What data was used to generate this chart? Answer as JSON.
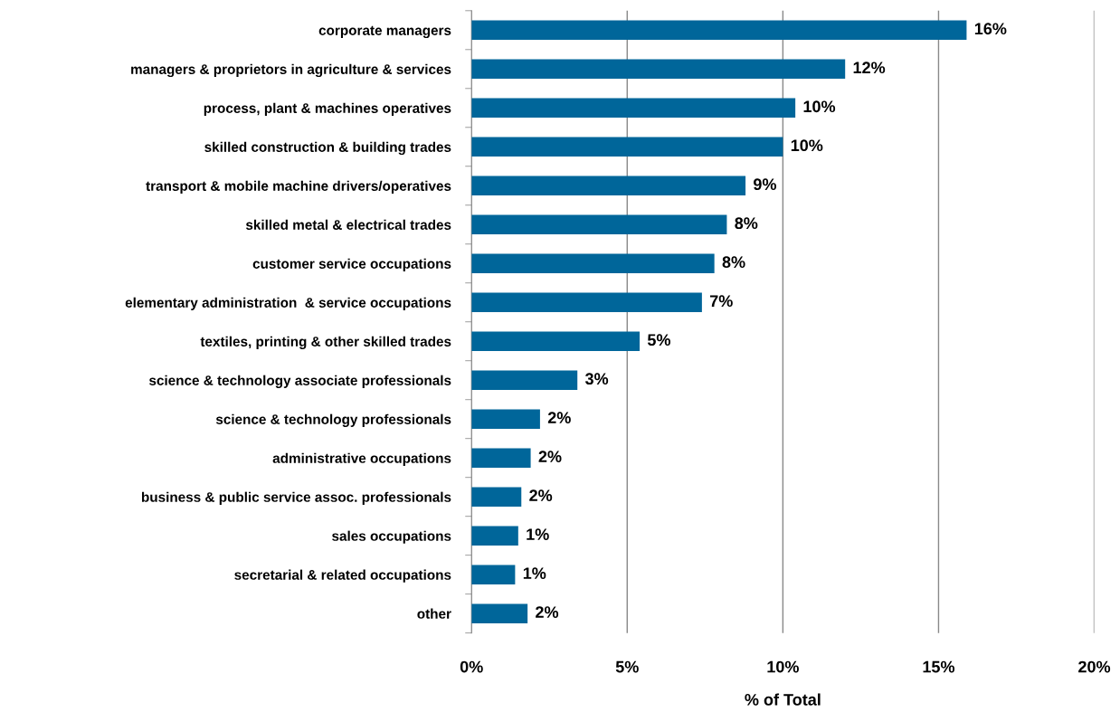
{
  "chart_data": {
    "type": "bar",
    "orientation": "horizontal",
    "xlabel": "% of Total",
    "categories": [
      "corporate managers",
      "managers & proprietors in agriculture & services",
      "process, plant & machines operatives",
      "skilled construction & building trades",
      "transport & mobile machine drivers/operatives",
      "skilled metal & electrical trades",
      "customer service occupations",
      "elementary administration  & service occupations",
      "textiles, printing & other skilled trades",
      "science & technology associate professionals",
      "science & technology professionals",
      "administrative occupations",
      "business & public service assoc. professionals",
      "sales occupations",
      "secretarial & related occupations",
      "other"
    ],
    "values": [
      15.9,
      12.0,
      10.4,
      10.0,
      8.8,
      8.2,
      7.8,
      7.4,
      5.4,
      3.4,
      2.2,
      1.9,
      1.6,
      1.5,
      1.4,
      1.8
    ],
    "value_labels": [
      "16%",
      "12%",
      "10%",
      "10%",
      "9%",
      "8%",
      "8%",
      "7%",
      "5%",
      "3%",
      "2%",
      "2%",
      "2%",
      "1%",
      "1%",
      "2%"
    ],
    "color": "#00669a",
    "xlim": [
      0,
      20
    ],
    "xticks": [
      {
        "value": 0,
        "label": "0%"
      },
      {
        "value": 5,
        "label": "5%"
      },
      {
        "value": 10,
        "label": "10%"
      },
      {
        "value": 15,
        "label": "15%"
      },
      {
        "value": 20,
        "label": "20%"
      }
    ],
    "grid": "x",
    "legend": false
  }
}
